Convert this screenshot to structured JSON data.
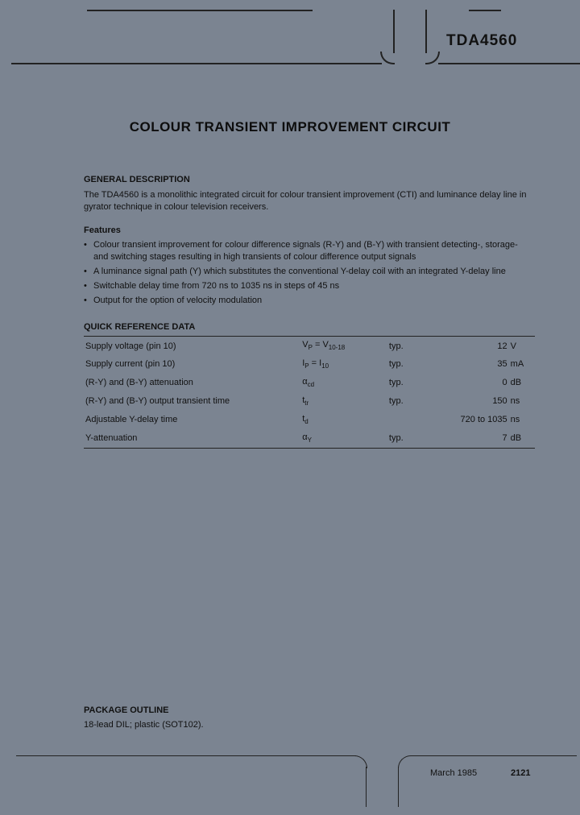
{
  "part_number": "TDA4560",
  "title": "COLOUR TRANSIENT IMPROVEMENT CIRCUIT",
  "general_description": {
    "heading": "GENERAL DESCRIPTION",
    "text": "The TDA4560 is a monolithic integrated circuit for colour transient improvement (CTI) and luminance delay line in gyrator technique in colour television receivers."
  },
  "features": {
    "heading": "Features",
    "items": [
      "Colour transient improvement for colour difference signals (R-Y) and (B-Y) with transient detecting-, storage- and switching stages resulting in high transients of colour difference output signals",
      "A luminance signal path (Y) which substitutes the conventional Y-delay coil with an integrated Y-delay line",
      "Switchable delay time from 720 ns to 1035 ns in steps of 45 ns",
      "Output for the option of velocity modulation"
    ]
  },
  "quick_reference": {
    "heading": "QUICK REFERENCE DATA",
    "rows": [
      {
        "param": "Supply voltage (pin 10)",
        "symbol": "V",
        "symbol_sub": "P",
        "sym_extra": " = V",
        "sym_extra_sub": "10-18",
        "typ": "typ.",
        "value": "12",
        "unit": "V"
      },
      {
        "param": "Supply current (pin 10)",
        "symbol": "I",
        "symbol_sub": "P",
        "sym_extra": " = I",
        "sym_extra_sub": "10",
        "typ": "typ.",
        "value": "35",
        "unit": "mA"
      },
      {
        "param": "(R-Y) and (B-Y) attenuation",
        "symbol": "α",
        "symbol_sub": "cd",
        "sym_extra": "",
        "sym_extra_sub": "",
        "typ": "typ.",
        "value": "0",
        "unit": "dB"
      },
      {
        "param": "(R-Y) and (B-Y) output transient time",
        "symbol": "t",
        "symbol_sub": "tr",
        "sym_extra": "",
        "sym_extra_sub": "",
        "typ": "typ.",
        "value": "150",
        "unit": "ns"
      },
      {
        "param": "Adjustable Y-delay time",
        "symbol": "t",
        "symbol_sub": "d",
        "sym_extra": "",
        "sym_extra_sub": "",
        "typ": "",
        "value": "720 to 1035",
        "unit": "ns"
      },
      {
        "param": "Y-attenuation",
        "symbol": "α",
        "symbol_sub": "Y",
        "sym_extra": "",
        "sym_extra_sub": "",
        "typ": "typ.",
        "value": "7",
        "unit": "dB"
      }
    ]
  },
  "package": {
    "heading": "PACKAGE OUTLINE",
    "text": "18-lead DIL; plastic (SOT102)."
  },
  "footer": {
    "date": "March 1985",
    "page": "2121"
  },
  "style": {
    "background": "#7b8491",
    "text_color": "#111",
    "rule_color": "#222",
    "title_fontsize": 17,
    "body_fontsize": 11,
    "partno_fontsize": 19
  }
}
